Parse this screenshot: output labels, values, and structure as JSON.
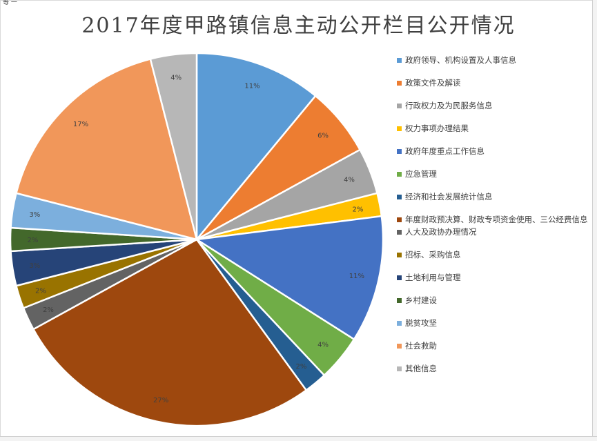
{
  "corner": "等 一",
  "chart_data": {
    "type": "pie",
    "title": "2017年度甲路镇信息主动公开栏目公开情况",
    "categories": [
      "政府领导、机构设置及人事信息",
      "政策文件及解读",
      "行政权力及为民服务信息",
      "权力事项办理结果",
      "政府年度重点工作信息",
      "应急管理",
      "经济和社会发展统计信息",
      "年度财政预决算、财政专项资金使用、三公经费信息",
      "人大及政协办理情况",
      "招标、采购信息",
      "土地利用与管理",
      "乡村建设",
      "脱贫攻坚",
      "社会救助",
      "其他信息"
    ],
    "values": [
      11,
      6,
      4,
      2,
      11,
      4,
      2,
      27,
      2,
      2,
      3,
      2,
      3,
      17,
      4
    ],
    "labels": [
      "11%",
      "6%",
      "4%",
      "2%",
      "11%",
      "4%",
      "2%",
      "27%",
      "2%",
      "2%",
      "3%",
      "2%",
      "3%",
      "17%",
      "4%"
    ],
    "colors": [
      "#5b9bd5",
      "#ed7d31",
      "#a5a5a5",
      "#ffc000",
      "#4472c4",
      "#70ad47",
      "#255e91",
      "#9e480e",
      "#636363",
      "#997300",
      "#264478",
      "#43682b",
      "#7cafdd",
      "#f1975a",
      "#b7b7b7"
    ],
    "legend_position": "right"
  }
}
